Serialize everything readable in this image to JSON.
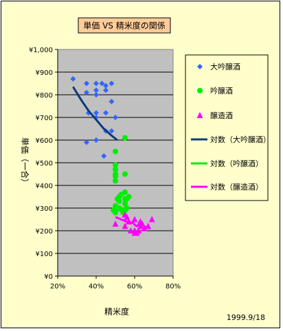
{
  "chart_data": {
    "type": "scatter",
    "title": "単価 VS 精米度の関係",
    "xlabel": "精米度",
    "ylabel": "単価（一合）",
    "xlim": [
      0.2,
      0.8
    ],
    "ylim": [
      0,
      1000
    ],
    "x_ticks": [
      {
        "value": 0.2,
        "label": "20%"
      },
      {
        "value": 0.4,
        "label": "40%"
      },
      {
        "value": 0.6,
        "label": "60%"
      },
      {
        "value": 0.8,
        "label": "80%"
      }
    ],
    "y_ticks": [
      {
        "value": 0,
        "label": "¥0"
      },
      {
        "value": 100,
        "label": "¥100"
      },
      {
        "value": 200,
        "label": "¥200"
      },
      {
        "value": 300,
        "label": "¥300"
      },
      {
        "value": 400,
        "label": "¥400"
      },
      {
        "value": 500,
        "label": "¥500"
      },
      {
        "value": 600,
        "label": "¥600"
      },
      {
        "value": 700,
        "label": "¥700"
      },
      {
        "value": 800,
        "label": "¥800"
      },
      {
        "value": 900,
        "label": "¥900"
      },
      {
        "value": 1000,
        "label": "¥1,000"
      }
    ],
    "grid": {
      "x": false,
      "y": true
    },
    "legend_position": "right",
    "series": [
      {
        "name": "大吟醸酒",
        "kind": "points",
        "marker": "diamond",
        "color": "#3366ff",
        "x": [
          0.28,
          0.35,
          0.4,
          0.43,
          0.45,
          0.48,
          0.35,
          0.4,
          0.4,
          0.45,
          0.48,
          0.4,
          0.45,
          0.5,
          0.36,
          0.4,
          0.45,
          0.4,
          0.48,
          0.35,
          0.44
        ],
        "y": [
          870,
          850,
          850,
          850,
          840,
          850,
          810,
          820,
          800,
          820,
          770,
          720,
          720,
          700,
          720,
          700,
          640,
          600,
          640,
          590,
          530
        ]
      },
      {
        "name": "吟醸酒",
        "kind": "points",
        "marker": "circle",
        "color": "#00ee00",
        "x": [
          0.55,
          0.5,
          0.5,
          0.5,
          0.5,
          0.5,
          0.5,
          0.55,
          0.55,
          0.52,
          0.55,
          0.52,
          0.55,
          0.5,
          0.52,
          0.55,
          0.57,
          0.49,
          0.5,
          0.54,
          0.53,
          0.51,
          0.56
        ],
        "y": [
          610,
          550,
          490,
          470,
          450,
          440,
          420,
          450,
          370,
          350,
          340,
          330,
          320,
          310,
          300,
          290,
          350,
          290,
          280,
          280,
          360,
          340,
          300
        ]
      },
      {
        "name": "醸造酒",
        "kind": "points",
        "marker": "triangle",
        "color": "#ff00ff",
        "x": [
          0.5,
          0.55,
          0.55,
          0.57,
          0.6,
          0.6,
          0.62,
          0.63,
          0.63,
          0.65,
          0.67,
          0.6,
          0.56,
          0.58,
          0.61,
          0.64,
          0.69
        ],
        "y": [
          230,
          270,
          220,
          240,
          200,
          190,
          200,
          240,
          220,
          210,
          220,
          250,
          260,
          200,
          190,
          230,
          250
        ]
      },
      {
        "name": "対数（大吟醸酒）",
        "kind": "line",
        "color": "#0a3a7a",
        "width": 3,
        "x": [
          0.28,
          0.32,
          0.36,
          0.4,
          0.44,
          0.48,
          0.51
        ],
        "y": [
          835,
          780,
          730,
          690,
          650,
          620,
          600
        ]
      },
      {
        "name": "対数（吟醸酒）",
        "kind": "line",
        "color": "#00ee00",
        "width": 3,
        "x": [
          0.49,
          0.51,
          0.52,
          0.53,
          0.54,
          0.55,
          0.55,
          0.56,
          0.57,
          0.575
        ],
        "y": [
          310,
          290,
          290,
          285,
          300,
          290,
          350,
          330,
          340,
          360
        ]
      },
      {
        "name": "対数（醸造酒）",
        "kind": "line",
        "color": "#ff00ff",
        "width": 3,
        "x": [
          0.5,
          0.53,
          0.56,
          0.59,
          0.61,
          0.63,
          0.66,
          0.68
        ],
        "y": [
          260,
          250,
          240,
          235,
          220,
          230,
          215,
          210
        ]
      }
    ],
    "annotations": [
      {
        "text": "1999.9/18"
      }
    ]
  }
}
